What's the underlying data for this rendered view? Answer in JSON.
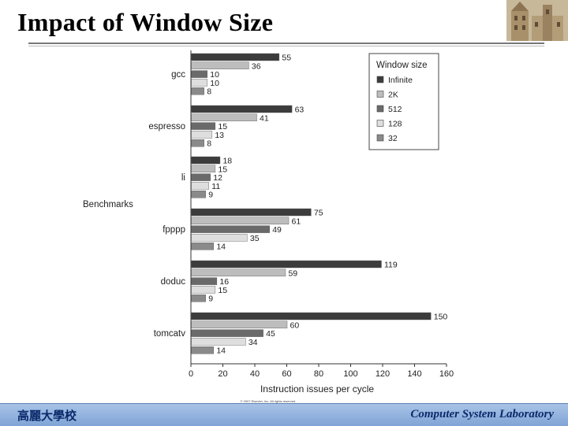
{
  "slide": {
    "title": "Impact of Window Size",
    "footer_left": "高麗大學校",
    "footer_right": "Computer System Laboratory"
  },
  "copyright": "© 2007 Elsevier, Inc. All rights reserved.",
  "colors": {
    "Infinite": "#3c3c3c",
    "2K": "#bdbdbd",
    "512": "#6a6a6a",
    "128": "#dedede",
    "32": "#8a8a8a"
  },
  "chart_data": {
    "type": "bar",
    "orientation": "horizontal",
    "title": "",
    "xlabel": "Instruction issues per cycle",
    "ylabel": "Benchmarks",
    "xlim": [
      0,
      160
    ],
    "xticks": [
      "0",
      "20",
      "40",
      "60",
      "80",
      "100",
      "120",
      "140",
      "160"
    ],
    "legend_title": "Window size",
    "legend_position": "top-right",
    "categories": [
      "gcc",
      "espresso",
      "li",
      "fpppp",
      "doduc",
      "tomcatv"
    ],
    "series": [
      {
        "name": "Infinite",
        "values": [
          55,
          63,
          18,
          75,
          119,
          150
        ]
      },
      {
        "name": "2K",
        "values": [
          36,
          41,
          15,
          61,
          59,
          60
        ]
      },
      {
        "name": "512",
        "values": [
          10,
          15,
          12,
          49,
          16,
          45
        ]
      },
      {
        "name": "128",
        "values": [
          10,
          13,
          11,
          35,
          15,
          34
        ]
      },
      {
        "name": "32",
        "values": [
          8,
          8,
          9,
          14,
          9,
          14
        ]
      }
    ]
  }
}
